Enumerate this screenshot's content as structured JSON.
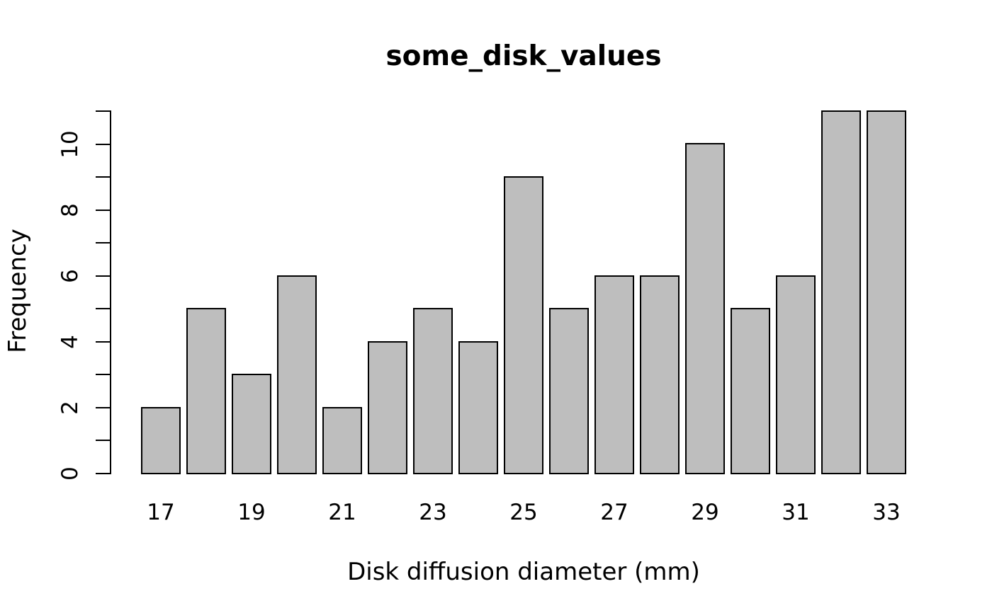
{
  "chart_data": {
    "type": "bar",
    "title": "some_disk_values",
    "xlabel": "Disk diffusion diameter (mm)",
    "ylabel": "Frequency",
    "categories": [
      17,
      18,
      19,
      20,
      21,
      22,
      23,
      24,
      25,
      26,
      27,
      28,
      29,
      30,
      31,
      32,
      33
    ],
    "values": [
      2,
      5,
      3,
      6,
      2,
      4,
      5,
      4,
      9,
      5,
      6,
      6,
      10,
      5,
      6,
      11,
      11
    ],
    "x_tick_labels": [
      "17",
      "19",
      "21",
      "23",
      "25",
      "27",
      "29",
      "31",
      "33"
    ],
    "x_tick_categories": [
      17,
      19,
      21,
      23,
      25,
      27,
      29,
      31,
      33
    ],
    "y_tick_values": [
      0,
      1,
      2,
      3,
      4,
      5,
      6,
      7,
      8,
      9,
      10,
      11
    ],
    "y_labeled_ticks": [
      0,
      2,
      4,
      6,
      8,
      10
    ],
    "y_tick_labels": [
      "0",
      "2",
      "4",
      "6",
      "8",
      "10"
    ],
    "ylim": [
      0,
      11
    ],
    "grid": false,
    "legend": null,
    "colors": {
      "bar_fill": "#bebebe",
      "bar_border": "#000000",
      "background": "#ffffff",
      "text": "#000000"
    }
  }
}
